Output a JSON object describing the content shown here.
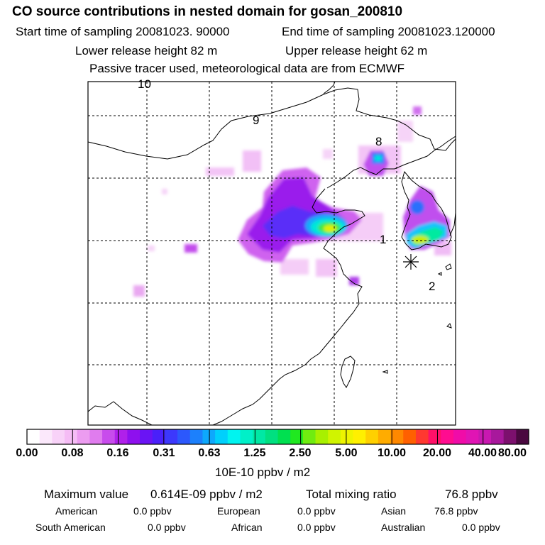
{
  "header": {
    "title": "CO  source contributions in nested domain for gosan_200810",
    "start_time": "Start time of sampling 20081023. 90000",
    "end_time": "End time of sampling 20081023.120000",
    "lower_height": "Lower release height   82 m",
    "upper_height": "Upper release height   62 m",
    "note": "Passive tracer used, meteorological data are from ECMWF"
  },
  "map": {
    "labels": [
      "10",
      "9",
      "8",
      "1",
      "2"
    ],
    "receptor": "gosan"
  },
  "colorbar": {
    "ticks": [
      "0.00",
      "0.08",
      "0.16",
      "0.31",
      "0.63",
      "1.25",
      "2.50",
      "5.00",
      "10.00",
      "20.00",
      "40.00",
      "80.00"
    ],
    "units": "10E-10 ppbv / m2",
    "colors": [
      "#ffffff",
      "#fbe8fb",
      "#f8d2f8",
      "#f5bcf5",
      "#ec9cf0",
      "#e07cee",
      "#c84cec",
      "#b020ea",
      "#8e10ee",
      "#6a14f4",
      "#4a20fa",
      "#3c38fc",
      "#2c58fc",
      "#1c80fc",
      "#0ea8fc",
      "#00d0fc",
      "#00f4f0",
      "#00f0c8",
      "#00e8a4",
      "#00e080",
      "#00e050",
      "#20e820",
      "#70ec10",
      "#a8f000",
      "#d0f400",
      "#eef400",
      "#fff000",
      "#ffd000",
      "#ffac00",
      "#ff8800",
      "#ff6000",
      "#ff3830",
      "#ff1068",
      "#ff0c90",
      "#f00ca8",
      "#e014b4",
      "#c818b0",
      "#a8189c",
      "#7c106e",
      "#4a0840"
    ]
  },
  "stats": {
    "max_label": "Maximum value",
    "max_value": "0.614E-09 ppbv / m2",
    "total_label": "Total mixing ratio",
    "total_value": "76.8 ppbv",
    "regions": [
      {
        "name": "American",
        "value": "0.0 ppbv"
      },
      {
        "name": "European",
        "value": "0.0 ppbv"
      },
      {
        "name": "Asian",
        "value": "76.8 ppbv"
      },
      {
        "name": "South American",
        "value": "0.0 ppbv"
      },
      {
        "name": "African",
        "value": "0.0 ppbv"
      },
      {
        "name": "Australian",
        "value": "0.0 ppbv"
      }
    ]
  }
}
